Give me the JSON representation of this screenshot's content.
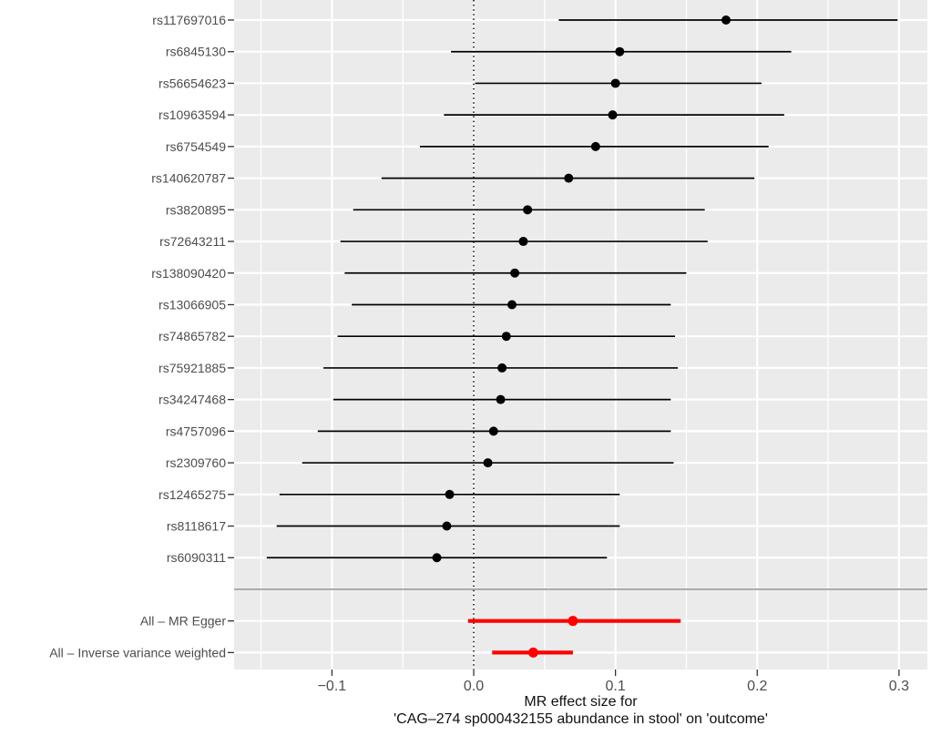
{
  "chart_data": {
    "type": "scatter",
    "variant": "forest-plot",
    "title": "",
    "xlabel_lines": [
      "MR effect size for",
      "'CAG–274 sp000432155 abundance in stool' on 'outcome'"
    ],
    "xlim": [
      -0.169,
      0.32
    ],
    "zero_line": 0.0,
    "grid": true,
    "legend": "none",
    "x_ticks": [
      {
        "value": -0.1,
        "label": "−0.1"
      },
      {
        "value": 0.0,
        "label": "0.0"
      },
      {
        "value": 0.1,
        "label": "0.1"
      },
      {
        "value": 0.2,
        "label": "0.2"
      },
      {
        "value": 0.3,
        "label": "0.3"
      }
    ],
    "x_minor_ticks": [
      -0.15,
      -0.05,
      0.05,
      0.15,
      0.25
    ],
    "rows": [
      {
        "label": "rs117697016",
        "estimate": 0.178,
        "ci_low": 0.06,
        "ci_high": 0.299,
        "color": "black"
      },
      {
        "label": "rs6845130",
        "estimate": 0.103,
        "ci_low": -0.016,
        "ci_high": 0.224,
        "color": "black"
      },
      {
        "label": "rs56654623",
        "estimate": 0.1,
        "ci_low": 0.001,
        "ci_high": 0.203,
        "color": "black"
      },
      {
        "label": "rs10963594",
        "estimate": 0.098,
        "ci_low": -0.021,
        "ci_high": 0.219,
        "color": "black"
      },
      {
        "label": "rs6754549",
        "estimate": 0.086,
        "ci_low": -0.038,
        "ci_high": 0.208,
        "color": "black"
      },
      {
        "label": "rs140620787",
        "estimate": 0.067,
        "ci_low": -0.065,
        "ci_high": 0.198,
        "color": "black"
      },
      {
        "label": "rs3820895",
        "estimate": 0.038,
        "ci_low": -0.085,
        "ci_high": 0.163,
        "color": "black"
      },
      {
        "label": "rs72643211",
        "estimate": 0.035,
        "ci_low": -0.094,
        "ci_high": 0.165,
        "color": "black"
      },
      {
        "label": "rs138090420",
        "estimate": 0.029,
        "ci_low": -0.091,
        "ci_high": 0.15,
        "color": "black"
      },
      {
        "label": "rs13066905",
        "estimate": 0.027,
        "ci_low": -0.086,
        "ci_high": 0.139,
        "color": "black"
      },
      {
        "label": "rs74865782",
        "estimate": 0.023,
        "ci_low": -0.096,
        "ci_high": 0.142,
        "color": "black"
      },
      {
        "label": "rs75921885",
        "estimate": 0.02,
        "ci_low": -0.106,
        "ci_high": 0.144,
        "color": "black"
      },
      {
        "label": "rs34247468",
        "estimate": 0.019,
        "ci_low": -0.099,
        "ci_high": 0.139,
        "color": "black"
      },
      {
        "label": "rs4757096",
        "estimate": 0.014,
        "ci_low": -0.11,
        "ci_high": 0.139,
        "color": "black"
      },
      {
        "label": "rs2309760",
        "estimate": 0.01,
        "ci_low": -0.121,
        "ci_high": 0.141,
        "color": "black"
      },
      {
        "label": "rs12465275",
        "estimate": -0.017,
        "ci_low": -0.137,
        "ci_high": 0.103,
        "color": "black"
      },
      {
        "label": "rs8118617",
        "estimate": -0.019,
        "ci_low": -0.139,
        "ci_high": 0.103,
        "color": "black"
      },
      {
        "label": "rs6090311",
        "estimate": -0.026,
        "ci_low": -0.146,
        "ci_high": 0.094,
        "color": "black"
      },
      {
        "label": "",
        "separator": true
      },
      {
        "label": "All – MR Egger",
        "estimate": 0.07,
        "ci_low": -0.004,
        "ci_high": 0.146,
        "color": "red"
      },
      {
        "label": "All – Inverse variance weighted",
        "estimate": 0.042,
        "ci_low": 0.013,
        "ci_high": 0.07,
        "color": "red"
      }
    ],
    "colors": {
      "panel_bg": "#EBEBEB",
      "grid": "#FFFFFF",
      "black_series": "#000000",
      "red_series": "#FF0000",
      "separator_line": "#A6A6A6",
      "tick": "#333333",
      "axis_text": "#4D4D4D",
      "title_text": "#111111"
    }
  }
}
